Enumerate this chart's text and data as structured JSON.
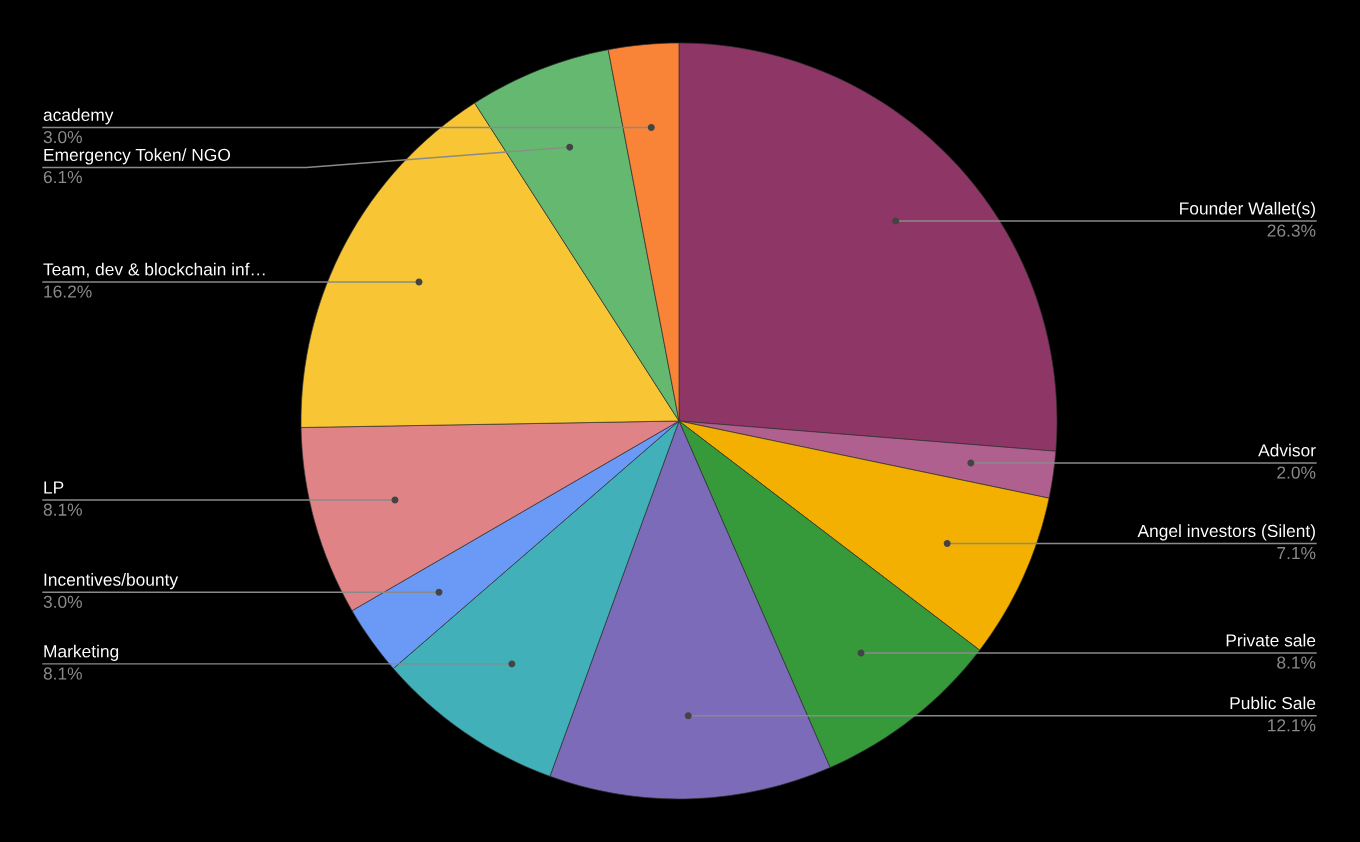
{
  "chart_data": {
    "type": "pie",
    "categories": [
      "Founder Wallet(s)",
      "Advisor",
      "Angel investors (Silent)",
      "Private sale",
      "Public Sale",
      "Marketing",
      "Incentives/bounty",
      "LP",
      "Team, dev & blockchain inf…",
      "Emergency Token/ NGO",
      "academy"
    ],
    "values": [
      26.3,
      2.0,
      7.1,
      8.1,
      12.1,
      8.1,
      3.0,
      8.1,
      16.2,
      6.1,
      3.0
    ],
    "colors": [
      "#8e3766",
      "#b0608f",
      "#f4b000",
      "#379a3a",
      "#7b6bb8",
      "#42b0b9",
      "#6a9af6",
      "#e08387",
      "#f8c535",
      "#65b86f",
      "#f98437"
    ],
    "value_labels": [
      "26.3%",
      "2.0%",
      "7.1%",
      "8.1%",
      "12.1%",
      "8.1%",
      "3.0%",
      "8.1%",
      "16.2%",
      "6.1%",
      "3.0%"
    ]
  }
}
